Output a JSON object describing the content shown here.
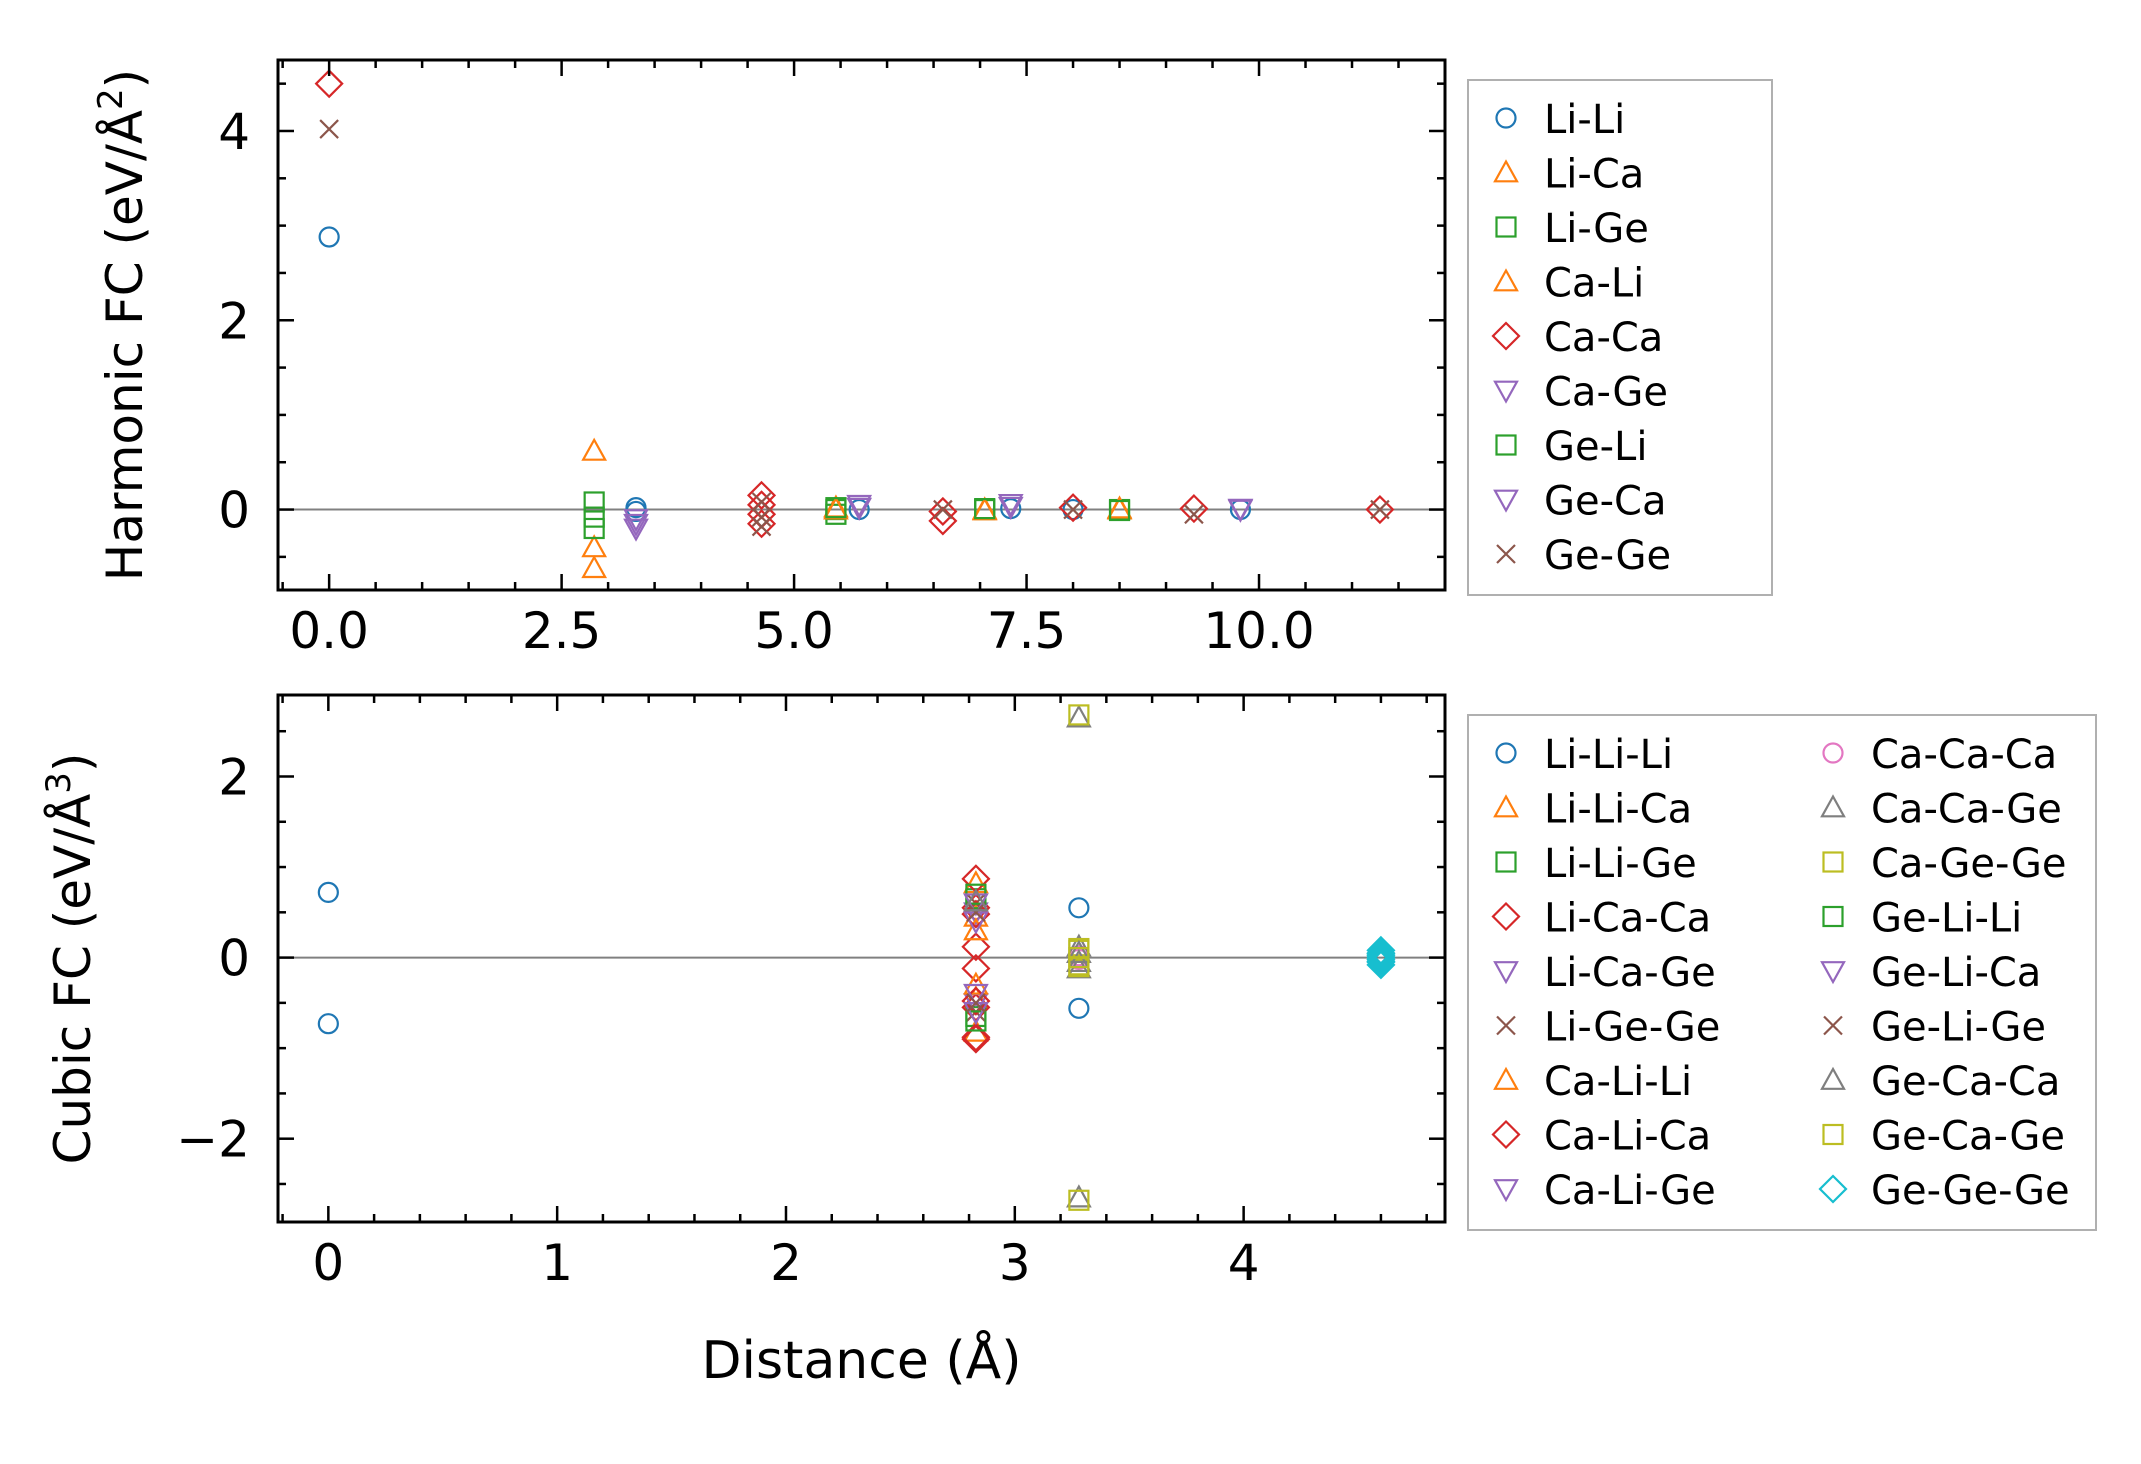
{
  "chart_data": [
    {
      "type": "scatter",
      "ylabel_main": "Harmonic FC (eV/Å",
      "ylabel_sup": "2",
      "ylabel_close": ")",
      "xlabel": "",
      "xlim": [
        -0.55,
        12.0
      ],
      "ylim": [
        -0.85,
        4.75
      ],
      "xticks": [
        0.0,
        2.5,
        5.0,
        7.5,
        10.0
      ],
      "xtick_labels": [
        "0.0",
        "2.5",
        "5.0",
        "7.5",
        "10.0"
      ],
      "yticks": [
        0,
        2,
        4
      ],
      "ytick_labels": [
        "0",
        "2",
        "4"
      ],
      "legend_position": "outside-right",
      "series": [
        {
          "name": "Li-Li",
          "marker": "circle",
          "color": "#1f77b4",
          "points": [
            [
              0,
              2.88
            ],
            [
              3.3,
              0.02
            ],
            [
              3.3,
              -0.02
            ],
            [
              5.7,
              0.0
            ],
            [
              7.33,
              0.01
            ],
            [
              8.0,
              0.0
            ],
            [
              9.8,
              0.0
            ]
          ]
        },
        {
          "name": "Li-Ca",
          "marker": "triangle-up",
          "color": "#ff7f0e",
          "points": [
            [
              2.85,
              0.62
            ],
            [
              2.85,
              -0.4
            ],
            [
              2.85,
              -0.62
            ],
            [
              5.45,
              0.02
            ],
            [
              7.05,
              0.0
            ],
            [
              8.5,
              0.0
            ]
          ]
        },
        {
          "name": "Li-Ge",
          "marker": "square",
          "color": "#2ca02c",
          "points": [
            [
              2.85,
              0.08
            ],
            [
              2.85,
              -0.08
            ],
            [
              2.85,
              -0.2
            ],
            [
              5.45,
              0.0
            ],
            [
              5.45,
              -0.05
            ],
            [
              7.05,
              0.0
            ],
            [
              8.5,
              0.0
            ]
          ]
        },
        {
          "name": "Ca-Li",
          "marker": "triangle-up",
          "color": "#ff7f0e",
          "points": [
            [
              5.45,
              0.0
            ],
            [
              7.05,
              -0.01
            ],
            [
              8.5,
              0.01
            ]
          ]
        },
        {
          "name": "Ca-Ca",
          "marker": "diamond",
          "color": "#d62728",
          "points": [
            [
              0,
              4.5
            ],
            [
              4.65,
              0.15
            ],
            [
              4.65,
              0.05
            ],
            [
              4.65,
              -0.05
            ],
            [
              4.65,
              -0.15
            ],
            [
              6.6,
              -0.02
            ],
            [
              6.6,
              -0.12
            ],
            [
              8.0,
              0.02
            ],
            [
              9.3,
              0.01
            ],
            [
              11.3,
              0.0
            ]
          ]
        },
        {
          "name": "Ca-Ge",
          "marker": "triangle-down",
          "color": "#9467bd",
          "points": [
            [
              3.3,
              -0.1
            ],
            [
              3.3,
              -0.2
            ],
            [
              5.7,
              0.02
            ],
            [
              7.33,
              0.03
            ],
            [
              9.8,
              0.0
            ]
          ]
        },
        {
          "name": "Ge-Li",
          "marker": "square",
          "color": "#2ca02c",
          "points": [
            [
              5.45,
              0.02
            ],
            [
              7.05,
              0.01
            ],
            [
              8.5,
              -0.01
            ]
          ]
        },
        {
          "name": "Ge-Ca",
          "marker": "triangle-down",
          "color": "#9467bd",
          "points": [
            [
              3.3,
              -0.15
            ],
            [
              5.7,
              0.05
            ],
            [
              7.33,
              0.06
            ],
            [
              9.8,
              0.01
            ]
          ]
        },
        {
          "name": "Ge-Ge",
          "marker": "x",
          "color": "#8c564b",
          "points": [
            [
              0,
              4.02
            ],
            [
              4.65,
              0.08
            ],
            [
              4.65,
              -0.08
            ],
            [
              4.65,
              -0.18
            ],
            [
              6.6,
              0.0
            ],
            [
              8.0,
              0.0
            ],
            [
              9.3,
              -0.05
            ],
            [
              11.3,
              0.0
            ]
          ]
        }
      ]
    },
    {
      "type": "scatter",
      "ylabel_main": "Cubic FC (eV/Å",
      "ylabel_sup": "3",
      "ylabel_close": ")",
      "xlabel": "Distance (Å)",
      "xlim": [
        -0.22,
        4.88
      ],
      "ylim": [
        -2.92,
        2.9
      ],
      "xticks": [
        0,
        1,
        2,
        3,
        4
      ],
      "xtick_labels": [
        "0",
        "1",
        "2",
        "3",
        "4"
      ],
      "yticks": [
        -2,
        0,
        2
      ],
      "ytick_labels": [
        "−2",
        "0",
        "2"
      ],
      "legend_position": "outside-right",
      "series": [
        {
          "name": "Li-Li-Li",
          "marker": "circle",
          "color": "#1f77b4",
          "points": [
            [
              0,
              0.72
            ],
            [
              0,
              -0.73
            ],
            [
              3.28,
              0.55
            ],
            [
              3.28,
              -0.56
            ]
          ]
        },
        {
          "name": "Li-Li-Ca",
          "marker": "triangle-up",
          "color": "#ff7f0e",
          "points": [
            [
              2.83,
              0.82
            ],
            [
              2.83,
              0.45
            ],
            [
              2.83,
              -0.45
            ],
            [
              2.83,
              -0.82
            ]
          ]
        },
        {
          "name": "Li-Li-Ge",
          "marker": "square",
          "color": "#2ca02c",
          "points": [
            [
              2.83,
              0.65
            ],
            [
              2.83,
              -0.65
            ]
          ]
        },
        {
          "name": "Li-Ca-Ca",
          "marker": "diamond",
          "color": "#d62728",
          "points": [
            [
              2.83,
              0.87
            ],
            [
              2.83,
              0.55
            ],
            [
              2.83,
              0.12
            ],
            [
              2.83,
              -0.12
            ],
            [
              2.83,
              -0.55
            ],
            [
              2.83,
              -0.9
            ]
          ]
        },
        {
          "name": "Li-Ca-Ge",
          "marker": "triangle-down",
          "color": "#9467bd",
          "points": [
            [
              2.83,
              0.5
            ],
            [
              2.83,
              -0.5
            ]
          ]
        },
        {
          "name": "Li-Ge-Ge",
          "marker": "x",
          "color": "#8c564b",
          "points": [
            [
              2.83,
              0.6
            ],
            [
              2.83,
              -0.6
            ]
          ]
        },
        {
          "name": "Ca-Li-Li",
          "marker": "triangle-up",
          "color": "#ff7f0e",
          "points": [
            [
              2.83,
              0.3
            ],
            [
              2.83,
              -0.3
            ]
          ]
        },
        {
          "name": "Ca-Li-Ca",
          "marker": "diamond",
          "color": "#d62728",
          "points": [
            [
              2.83,
              0.48
            ],
            [
              2.83,
              -0.48
            ],
            [
              2.83,
              -0.88
            ]
          ]
        },
        {
          "name": "Ca-Li-Ge",
          "marker": "triangle-down",
          "color": "#9467bd",
          "points": [
            [
              2.83,
              0.4
            ],
            [
              2.83,
              -0.4
            ]
          ]
        },
        {
          "name": "Ca-Ca-Ca",
          "marker": "circle",
          "color": "#e377c2",
          "points": [
            [
              3.28,
              0.02
            ],
            [
              3.28,
              -0.02
            ]
          ]
        },
        {
          "name": "Ca-Ca-Ge",
          "marker": "triangle-up",
          "color": "#7f7f7f",
          "points": [
            [
              3.28,
              2.65
            ],
            [
              3.28,
              -2.65
            ],
            [
              3.28,
              0.12
            ],
            [
              3.28,
              -0.12
            ]
          ]
        },
        {
          "name": "Ca-Ge-Ge",
          "marker": "square",
          "color": "#bcbd22",
          "points": [
            [
              3.28,
              2.68
            ],
            [
              3.28,
              -2.68
            ],
            [
              3.28,
              0.08
            ],
            [
              3.28,
              -0.08
            ]
          ]
        },
        {
          "name": "Ge-Li-Li",
          "marker": "square",
          "color": "#2ca02c",
          "points": [
            [
              2.83,
              0.7
            ],
            [
              2.83,
              -0.7
            ]
          ]
        },
        {
          "name": "Ge-Li-Ca",
          "marker": "triangle-down",
          "color": "#9467bd",
          "points": [
            [
              2.83,
              0.6
            ],
            [
              2.83,
              -0.6
            ]
          ]
        },
        {
          "name": "Ge-Li-Ge",
          "marker": "x",
          "color": "#8c564b",
          "points": [
            [
              2.83,
              0.5
            ],
            [
              2.83,
              -0.5
            ]
          ]
        },
        {
          "name": "Ge-Ca-Ca",
          "marker": "triangle-up",
          "color": "#7f7f7f",
          "points": [
            [
              3.28,
              0.05
            ],
            [
              3.28,
              -0.05
            ],
            [
              2.83,
              0.62
            ]
          ]
        },
        {
          "name": "Ge-Ca-Ge",
          "marker": "square",
          "color": "#bcbd22",
          "points": [
            [
              3.28,
              0.0
            ],
            [
              3.28,
              0.1
            ],
            [
              3.28,
              -0.1
            ]
          ]
        },
        {
          "name": "Ge-Ge-Ge",
          "marker": "diamond",
          "color": "#17becf",
          "points": [
            [
              4.6,
              0.08
            ],
            [
              4.6,
              0.05
            ],
            [
              4.6,
              0.02
            ],
            [
              4.6,
              0.0
            ],
            [
              4.6,
              -0.02
            ],
            [
              4.6,
              -0.05
            ],
            [
              4.6,
              -0.08
            ],
            [
              4.6,
              0.04
            ],
            [
              4.6,
              -0.04
            ]
          ]
        }
      ]
    }
  ]
}
